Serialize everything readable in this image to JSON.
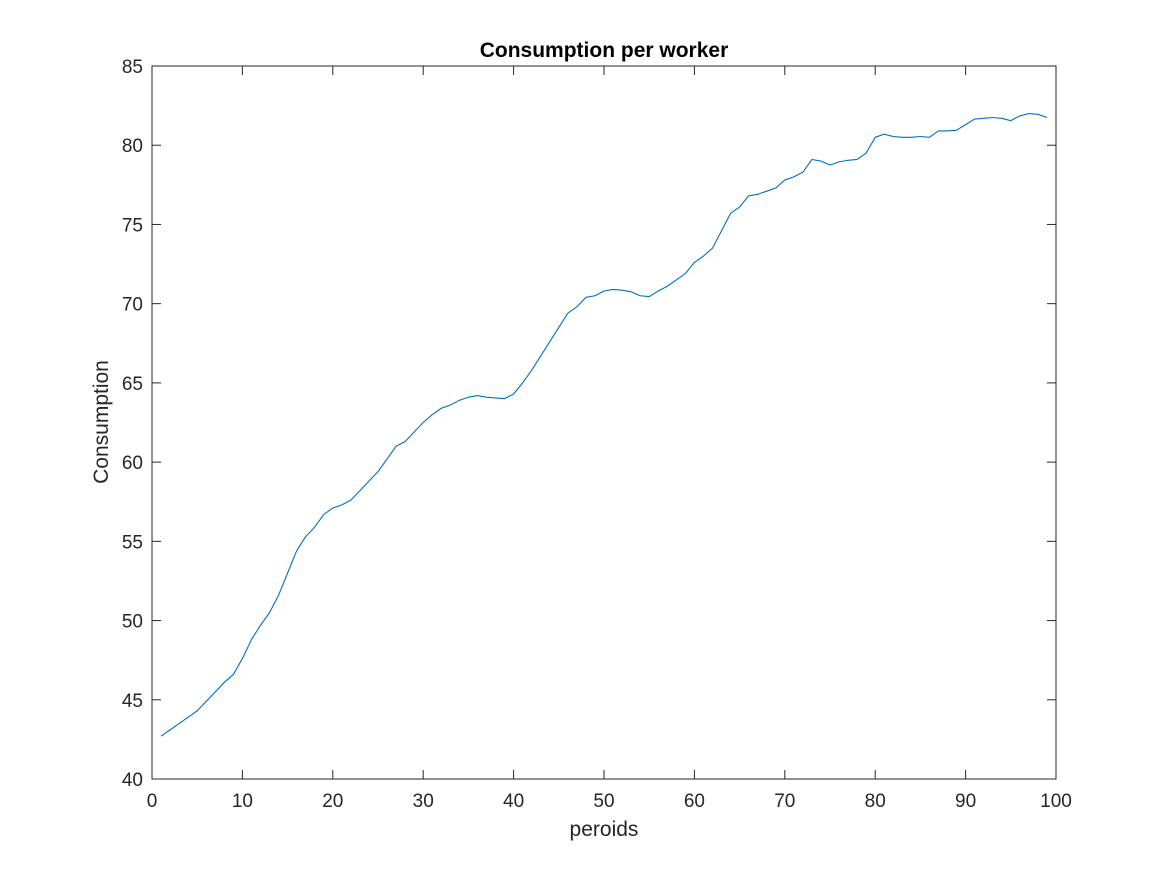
{
  "chart_data": {
    "type": "line",
    "title": "Consumption per worker",
    "xlabel": "peroids",
    "ylabel": "Consumption",
    "xlim": [
      0,
      100
    ],
    "ylim": [
      40,
      85
    ],
    "xticks": [
      0,
      10,
      20,
      30,
      40,
      50,
      60,
      70,
      80,
      90,
      100
    ],
    "yticks": [
      40,
      45,
      50,
      55,
      60,
      65,
      70,
      75,
      80,
      85
    ],
    "grid": false,
    "box": true,
    "colors": {
      "line": "#0072BD",
      "axes": "#262626",
      "title": "#000000"
    },
    "series": [
      {
        "x": [
          1,
          2,
          3,
          4,
          5,
          6,
          7,
          8,
          9,
          10,
          11,
          12,
          13,
          14,
          15,
          16,
          17,
          18,
          19,
          20,
          21,
          22,
          23,
          24,
          25,
          26,
          27,
          28,
          29,
          30,
          31,
          32,
          33,
          34,
          35,
          36,
          37,
          38,
          39,
          40,
          41,
          42,
          43,
          44,
          45,
          46,
          47,
          48,
          49,
          50,
          51,
          52,
          53,
          54,
          55,
          56,
          57,
          58,
          59,
          60,
          61,
          62,
          63,
          64,
          65,
          66,
          67,
          68,
          69,
          70,
          71,
          72,
          73,
          74,
          75,
          76,
          77,
          78,
          79,
          80,
          81,
          82,
          83,
          84,
          85,
          86,
          87,
          88,
          89,
          90,
          91,
          92,
          93,
          94,
          95,
          96,
          97,
          98,
          99
        ],
        "values": [
          42.7,
          43.1,
          43.5,
          43.9,
          44.3,
          44.9,
          45.5,
          46.1,
          46.6,
          47.6,
          48.8,
          49.7,
          50.5,
          51.6,
          53.0,
          54.4,
          55.3,
          55.9,
          56.7,
          57.1,
          57.3,
          57.6,
          58.2,
          58.8,
          59.4,
          60.2,
          61.0,
          61.3,
          61.9,
          62.5,
          63.0,
          63.4,
          63.6,
          63.9,
          64.1,
          64.2,
          64.1,
          64.05,
          64.0,
          64.3,
          65.0,
          65.8,
          66.7,
          67.6,
          68.5,
          69.4,
          69.8,
          70.4,
          70.5,
          70.8,
          70.9,
          70.85,
          70.75,
          70.5,
          70.45,
          70.8,
          71.1,
          71.5,
          71.9,
          72.6,
          73.0,
          73.5,
          74.6,
          75.7,
          76.1,
          76.8,
          76.9,
          77.1,
          77.3,
          77.8,
          78.0,
          78.3,
          79.1,
          79.0,
          78.75,
          78.95,
          79.05,
          79.1,
          79.5,
          80.5,
          80.7,
          80.55,
          80.5,
          80.5,
          80.55,
          80.5,
          80.9,
          80.9,
          80.95,
          81.3,
          81.65,
          81.7,
          81.75,
          81.7,
          81.55,
          81.85,
          82.0,
          81.95,
          81.75
        ]
      }
    ]
  }
}
